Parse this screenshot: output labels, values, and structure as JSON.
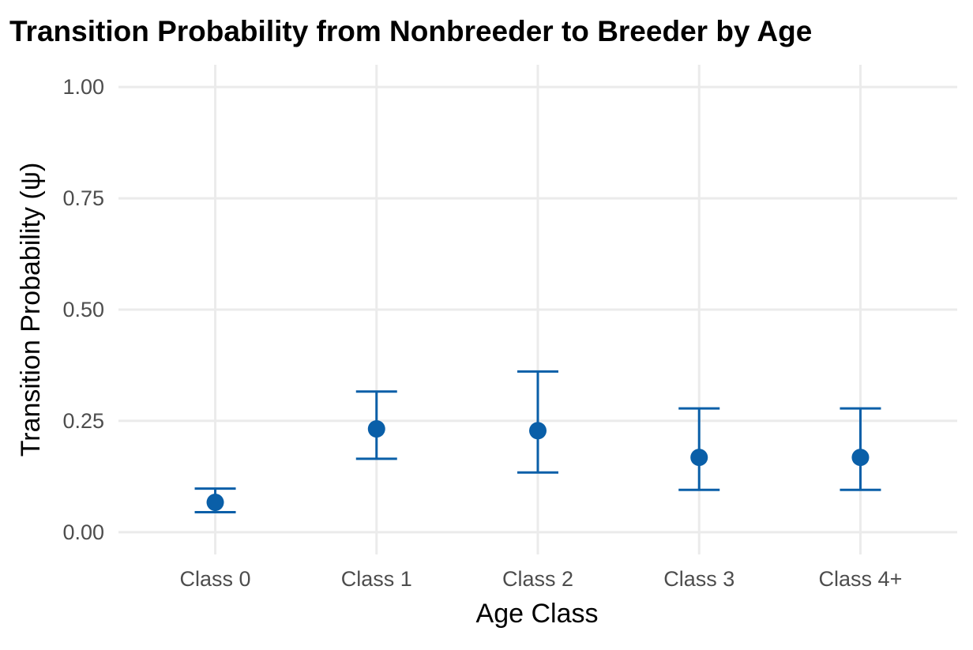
{
  "chart_data": {
    "type": "scatter",
    "title": "Transition Probability from Nonbreeder to Breeder by Age",
    "xlabel": "Age Class",
    "ylabel": "Transition Probability (ψ)",
    "categories": [
      "Class 0",
      "Class 1",
      "Class 2",
      "Class 3",
      "Class 4+"
    ],
    "values": [
      0.067,
      0.232,
      0.228,
      0.168,
      0.168
    ],
    "lower": [
      0.045,
      0.165,
      0.134,
      0.095,
      0.095
    ],
    "upper": [
      0.098,
      0.316,
      0.361,
      0.278,
      0.278
    ],
    "ylim": [
      -0.05,
      1.05
    ],
    "yticks": [
      0.0,
      0.25,
      0.5,
      0.75,
      1.0
    ],
    "ytick_labels": [
      "0.00",
      "0.25",
      "0.50",
      "0.75",
      "1.00"
    ],
    "grid": true,
    "legend": "none",
    "colors": {
      "point": "#0a5fa8",
      "errorbar": "#0a5fa8",
      "grid": "#ebebeb"
    }
  }
}
